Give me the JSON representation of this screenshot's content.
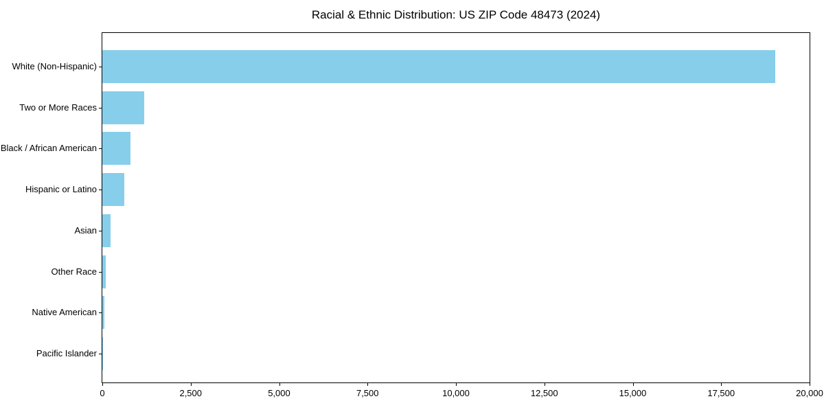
{
  "chart_data": {
    "type": "bar",
    "orientation": "horizontal",
    "title": "Racial & Ethnic Distribution: US ZIP Code 48473 (2024)",
    "categories": [
      "White (Non-Hispanic)",
      "Two or More Races",
      "Black / African American",
      "Hispanic or Latino",
      "Asian",
      "Other Race",
      "Native American",
      "Pacific Islander"
    ],
    "values": [
      19030,
      1190,
      800,
      630,
      240,
      100,
      60,
      10
    ],
    "xlabel": "",
    "ylabel": "",
    "xlim": [
      0,
      20000
    ],
    "xticks": [
      0,
      2500,
      5000,
      7500,
      10000,
      12500,
      15000,
      17500,
      20000
    ],
    "xtick_labels": [
      "0",
      "2,500",
      "5,000",
      "7,500",
      "10,000",
      "12,500",
      "15,000",
      "17,500",
      "20,000"
    ],
    "bar_color": "#87CEEB",
    "axis_color": "#000000",
    "background_color": "#ffffff",
    "grid": false,
    "legend": false
  }
}
